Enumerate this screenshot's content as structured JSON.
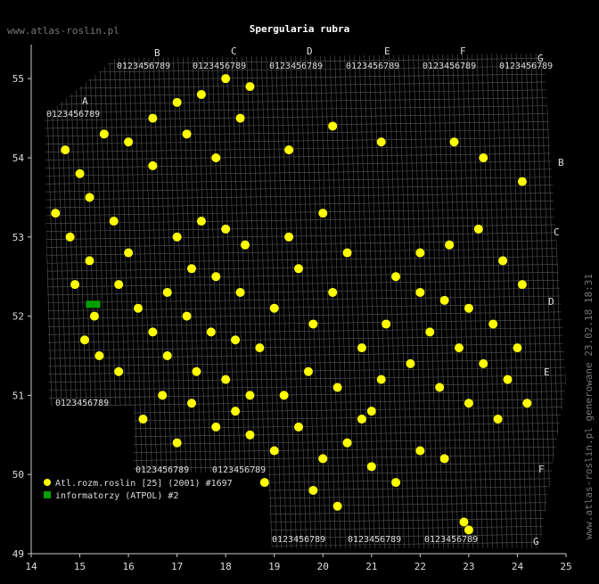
{
  "chart_data": {
    "type": "scatter",
    "title": "Spergularia rubra",
    "site": "www.atlas-roslin.pl",
    "footer": "www.atlas-roslin.pl generowane 23.02.18 18:31",
    "xlim": [
      14,
      25
    ],
    "ylim": [
      49,
      55.43
    ],
    "xticks": [
      14,
      15,
      16,
      17,
      18,
      19,
      20,
      21,
      22,
      23,
      24,
      25
    ],
    "yticks": [
      49,
      50,
      51,
      52,
      53,
      54,
      55
    ],
    "grid_letters": [
      "A",
      "B",
      "C",
      "D",
      "E",
      "F",
      "G"
    ],
    "grid_digits": "0123456789",
    "series": [
      {
        "name": "Atl.rozm.roslin [25] (2001) #1697",
        "color": "#ffff00",
        "x": [
          16.5,
          17,
          17.5,
          18,
          18.5,
          16,
          17.2,
          18.3,
          15.5,
          14.7,
          15,
          16.5,
          17.8,
          19.3,
          20.2,
          21.2,
          22.7,
          23.3,
          24.1,
          14.5,
          14.8,
          15.2,
          14.9,
          15.3,
          15.1,
          15.4,
          15.8,
          15.2,
          15.7,
          16,
          15.8,
          16.2,
          16.5,
          16.8,
          17,
          17.5,
          18,
          18.4,
          17.3,
          17.8,
          18.3,
          16.8,
          17.2,
          17.7,
          18.2,
          18.7,
          19,
          19.5,
          19.3,
          20,
          20.5,
          20.2,
          19.8,
          17.4,
          18,
          18.5,
          21.5,
          22,
          22.5,
          23,
          23.5,
          24,
          22.2,
          22.8,
          23.3,
          23.8,
          24.2,
          21.8,
          22.4,
          23,
          23.6,
          21.3,
          22,
          22.6,
          23.2,
          23.7,
          24.1,
          20.8,
          21.2,
          21,
          18.5,
          19,
          19.5,
          20,
          20.5,
          21,
          21.5,
          22,
          22.5,
          20.3,
          19.8,
          18.8,
          18.2,
          19.2,
          19.7,
          20.3,
          20.8,
          17.8,
          17.3,
          16.7,
          16.3,
          17,
          22.9,
          23
        ],
        "y": [
          54.5,
          54.7,
          54.8,
          55,
          54.9,
          54.2,
          54.3,
          54.5,
          54.3,
          54.1,
          53.8,
          53.9,
          54,
          54.1,
          54.4,
          54.2,
          54.2,
          54,
          53.7,
          53.3,
          53,
          52.7,
          52.4,
          52,
          51.7,
          51.5,
          51.3,
          53.5,
          53.2,
          52.8,
          52.4,
          52.1,
          51.8,
          51.5,
          53,
          53.2,
          53.1,
          52.9,
          52.6,
          52.5,
          52.3,
          52.3,
          52,
          51.8,
          51.7,
          51.6,
          52.1,
          52.6,
          53,
          53.3,
          52.8,
          52.3,
          51.9,
          51.3,
          51.2,
          51,
          52.5,
          52.3,
          52.2,
          52.1,
          51.9,
          51.6,
          51.8,
          51.6,
          51.4,
          51.2,
          50.9,
          51.4,
          51.1,
          50.9,
          50.7,
          51.9,
          52.8,
          52.9,
          53.1,
          52.7,
          52.4,
          51.6,
          51.2,
          50.8,
          50.5,
          50.3,
          50.6,
          50.2,
          50.4,
          50.1,
          49.9,
          50.3,
          50.2,
          49.6,
          49.8,
          49.9,
          50.8,
          51,
          51.3,
          51.1,
          50.7,
          50.6,
          50.9,
          51,
          50.7,
          50.4,
          49.4,
          49.3
        ]
      },
      {
        "name": "informatorzy (ATPOL) #2",
        "color": "#00a000",
        "x": [
          15.2,
          15.35
        ],
        "y": [
          52.15,
          52.15
        ]
      }
    ]
  }
}
